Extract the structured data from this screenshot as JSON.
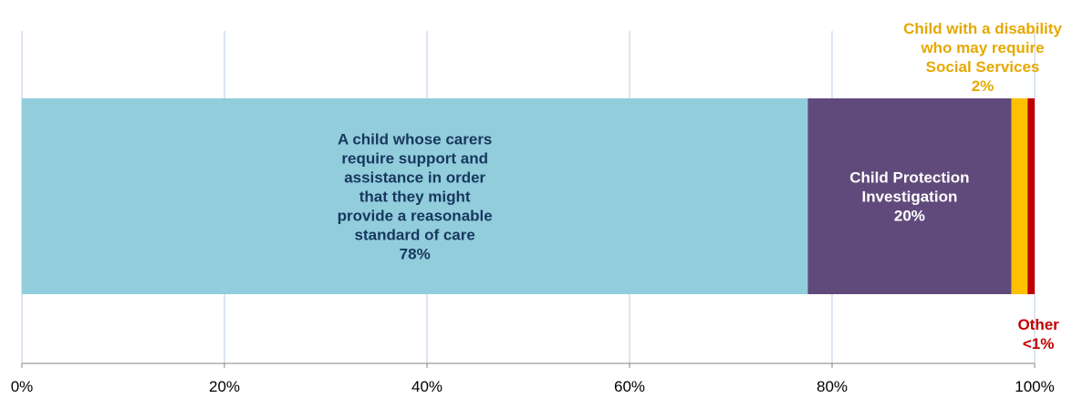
{
  "chart_data": {
    "type": "bar",
    "orientation": "horizontal",
    "stacked": true,
    "percent_axis": true,
    "xlim": [
      0,
      100
    ],
    "x_ticks": [
      "0%",
      "20%",
      "40%",
      "60%",
      "80%",
      "100%"
    ],
    "grid": "vertical",
    "series": [
      {
        "name": "A child whose carers require support and assistance in order that they might provide a reasonable standard of care",
        "value": 77.6,
        "label_lines": [
          "A child whose carers",
          "require support and",
          "assistance in order",
          "that they might",
          "provide a reasonable",
          "standard of care",
          "78%"
        ],
        "color": "#92CDDC",
        "label_color": "#17375E",
        "label_position": "inside"
      },
      {
        "name": "Child Protection Investigation",
        "value": 20.1,
        "label_lines": [
          "Child Protection",
          "Investigation",
          "20%"
        ],
        "color": "#604A7B",
        "label_color": "#FFFFFF",
        "label_position": "inside"
      },
      {
        "name": "Child with a disability who may require Social Services",
        "value": 1.6,
        "label_lines": [
          "Child with a disability",
          "who may require",
          "Social Services",
          "2%"
        ],
        "color": "#FFC000",
        "label_color": "#E6A800",
        "label_position": "above"
      },
      {
        "name": "Other",
        "value": 0.7,
        "label_lines": [
          "Other",
          "<1%"
        ],
        "color": "#C00000",
        "label_color": "#C00000",
        "label_position": "below"
      }
    ]
  }
}
